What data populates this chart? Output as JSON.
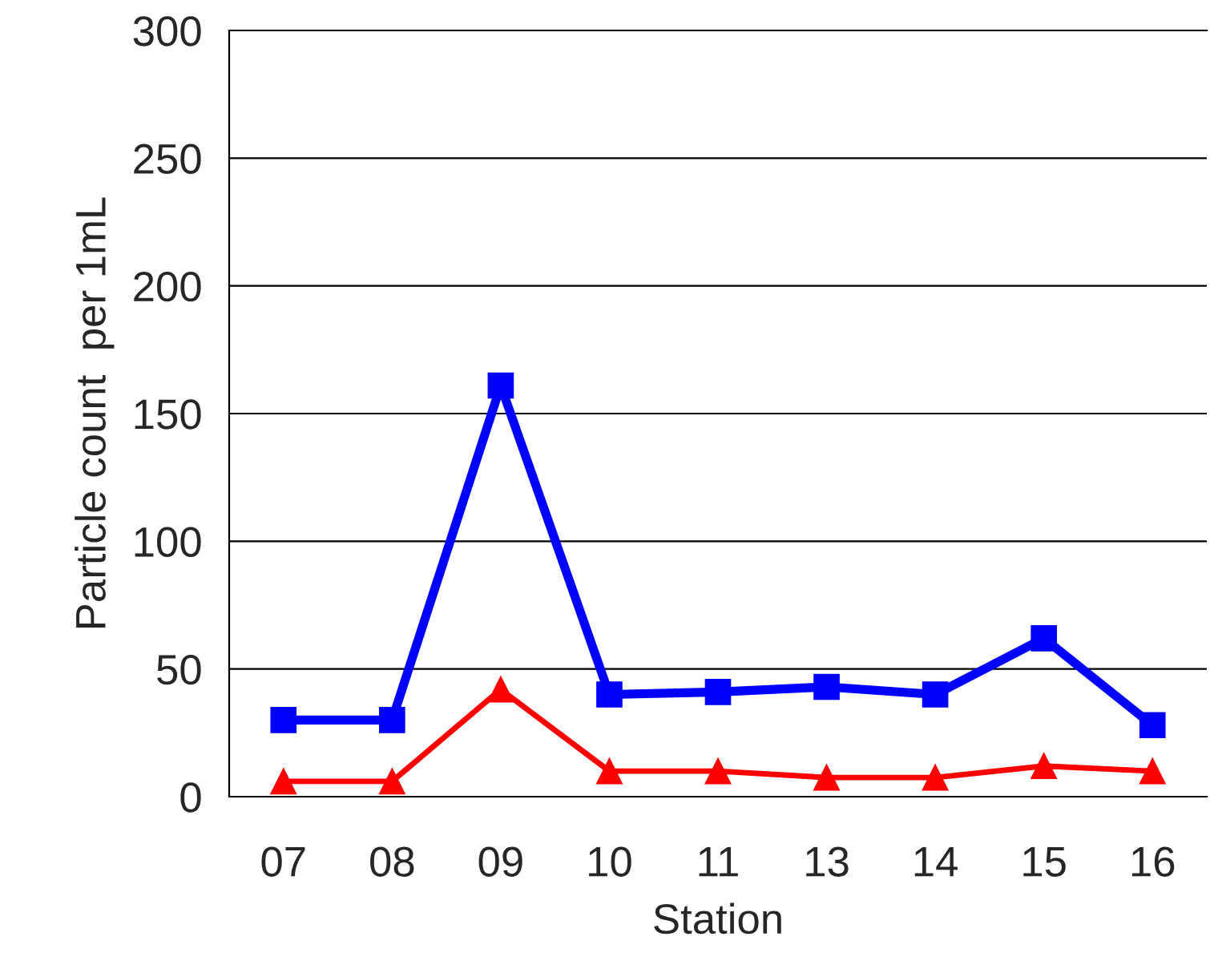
{
  "chart_data": {
    "type": "line",
    "xlabel": "Station",
    "ylabel": "Particle count  per 1mL",
    "categories": [
      "07",
      "08",
      "09",
      "10",
      "11",
      "13",
      "14",
      "15",
      "16"
    ],
    "series": [
      {
        "color": "#0000ff",
        "marker": "square",
        "values": [
          30,
          30,
          161,
          40,
          41,
          43,
          40,
          62,
          28
        ]
      },
      {
        "color": "#ff0000",
        "marker": "triangle",
        "values": [
          6,
          6,
          42,
          10,
          10,
          7.5,
          7.5,
          12,
          10
        ]
      }
    ],
    "ylim": [
      0,
      300
    ],
    "yticks": [
      0,
      50,
      100,
      150,
      200,
      250,
      300
    ],
    "grid": "y",
    "legend": false
  }
}
